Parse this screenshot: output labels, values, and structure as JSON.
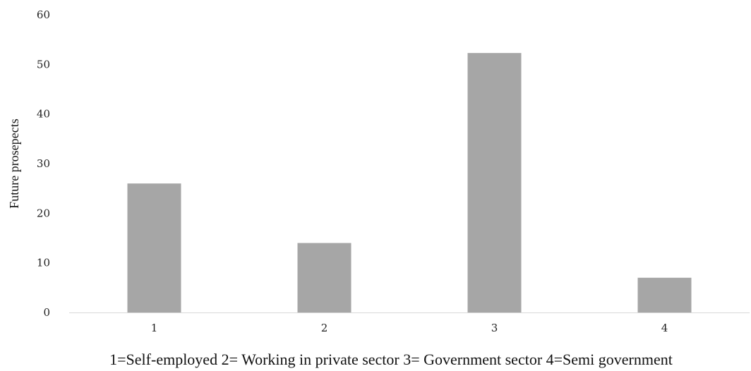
{
  "chart_data": {
    "type": "bar",
    "categories": [
      "1",
      "2",
      "3",
      "4"
    ],
    "values": [
      26,
      14,
      52.3,
      7
    ],
    "title": "",
    "xlabel": "1=Self-employed 2= Working in private sector 3= Government sector 4=Semi government",
    "ylabel": "Future prosepects",
    "ylim": [
      0,
      60
    ],
    "yticks": [
      0,
      10,
      20,
      30,
      40,
      50,
      60
    ],
    "grid": false,
    "bar_color": "#a6a6a6",
    "axis_color": "#d9d9d9"
  }
}
